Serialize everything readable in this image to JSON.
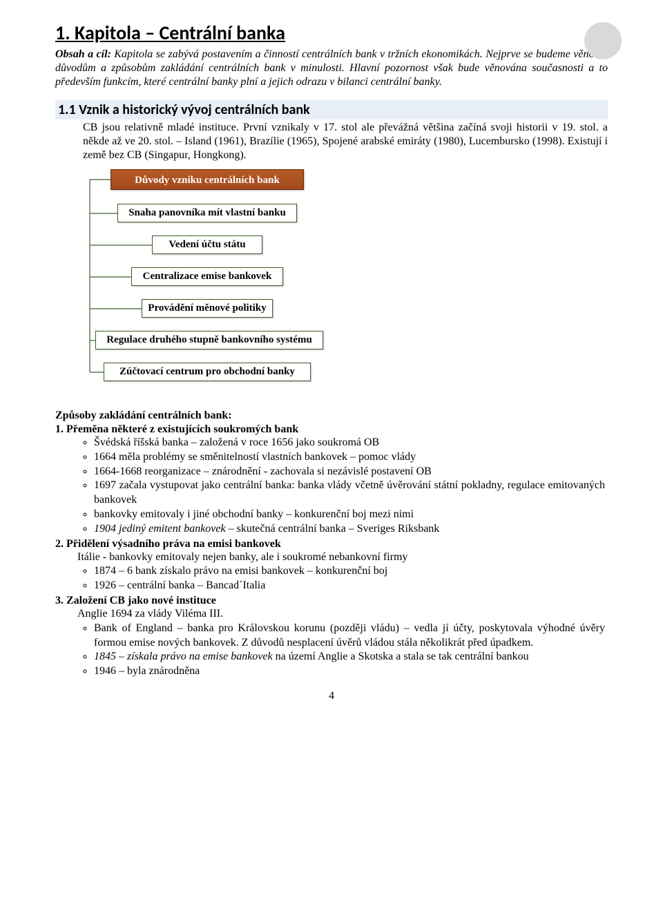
{
  "page": {
    "number": "4",
    "accent_circle_color": "#d9d9d9"
  },
  "chapter": {
    "title": "1. Kapitola – Centrální banka",
    "intro_label": "Obsah a cíl:",
    "intro_text": " Kapitola se zabývá postavením a činností centrálních bank v tržních ekonomikách. Nejprve se budeme věnovat důvodům a způsobům zakládání centrálních bank v minulosti. Hlavní pozornost však bude věnována současnosti a to především funkcím, které centrální banky plní a jejich odrazu v bilanci centrální banky."
  },
  "section": {
    "title": "1.1 Vznik a historický vývoj centrálních bank",
    "para": "CB jsou relativně mladé instituce. První vznikaly v 17. stol ale převážná většina začíná svoji historii v 19. stol. a někde až ve 20. stol. – Island (1961), Brazílie (1965), Spojené arabské emiráty (1980), Lucembursko (1998). Existují i země bez CB (Singapur, Hongkong)."
  },
  "diagram": {
    "title": "Důvody vzniku centrálních bank",
    "title_bg": "#a1481b",
    "title_color": "#ffffff",
    "node_border": "#3c5e2e",
    "node_bg": "#ffffff",
    "nodes": [
      "Snaha panovníka mít vlastní banku",
      "Vedení účtu státu",
      "Centralizace emise bankovek",
      "Provádění měnové politiky",
      "Regulace druhého stupně bankovního systému",
      "Zúčtovací centrum pro obchodní banky"
    ]
  },
  "methods": {
    "heading": "Způsoby zakládání centrálních bank:",
    "items": [
      {
        "title": "1. Přeměna některé z existujících soukromých bank",
        "body": "",
        "bullets": [
          "Švédská říšská banka – založená v roce 1656 jako soukromá OB",
          "1664 měla problémy se směnitelností vlastních bankovek – pomoc vlády",
          "1664-1668 reorganizace – znárodnění  - zachovala si nezávislé postavení OB",
          "1697 začala vystupovat jako centrální banka: banka vlády včetně úvěrování státní pokladny, regulace emitovaných bankovek",
          "bankovky emitovaly i jiné obchodní banky – konkurenční boj mezi nimi",
          "<i>1904 jediný emitent bankovek</i> – skutečná centrální banka – Sveriges Riksbank"
        ]
      },
      {
        "title": "2. Přidělení výsadního práva na emisi bankovek",
        "body": "Itálie - bankovky emitovaly nejen banky, ale i soukromé nebankovní firmy",
        "bullets": [
          "1874 – 6 bank získalo právo na emisi bankovek – konkurenční boj",
          "1926 – centrální banka – Bancad´Italia"
        ]
      },
      {
        "title": "3. Založení CB jako nové instituce",
        "body": "Anglie 1694 za vlády Viléma III.",
        "bullets": [
          "Bank of England – banka pro Královskou korunu (později vládu) – vedla jí účty, poskytovala výhodné úvěry formou emise nových bankovek. Z důvodů nesplacení úvěrů vládou stála několikrát před úpadkem.",
          "<i>1845 – získala právo na emise bankovek</i> na území Anglie a Skotska a stala se tak centrální bankou",
          "1946 – byla znárodněna"
        ]
      }
    ]
  }
}
